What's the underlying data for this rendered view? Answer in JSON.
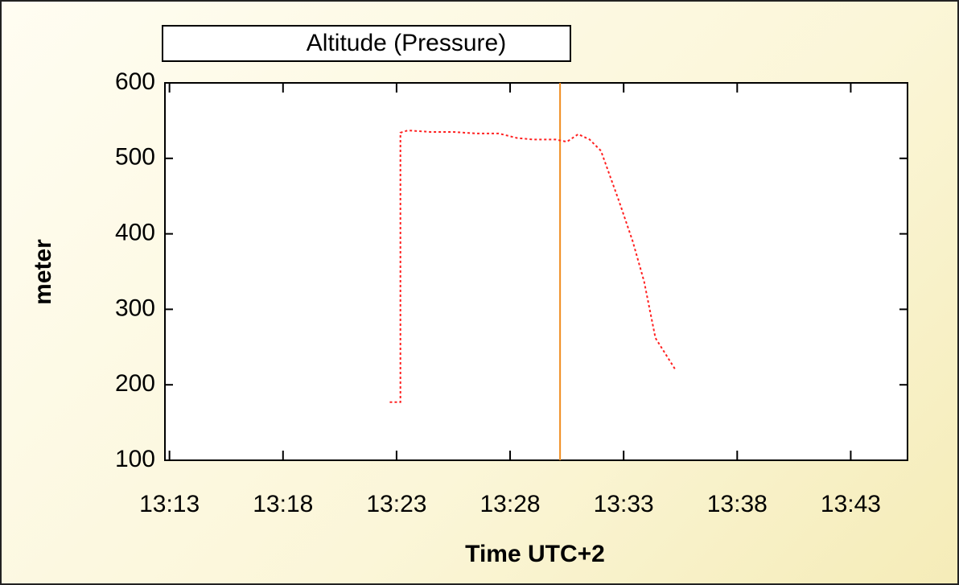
{
  "chart_data": {
    "type": "line",
    "xlabel": "Time UTC+2",
    "ylabel": "meter",
    "series": [
      {
        "name": "Altitude (Pressure)",
        "color": "#ff2020",
        "x": [
          802.7,
          803.17,
          803.17,
          803.5,
          804.5,
          805.5,
          806.5,
          807.5,
          808.3,
          809,
          810,
          810.5,
          811.0,
          811.5,
          812.0,
          812.8,
          813.4,
          813.9,
          814.4,
          815.3
        ],
        "values": [
          177,
          177,
          534,
          537,
          535,
          535,
          533,
          533,
          527,
          525,
          525,
          522,
          532,
          525,
          510,
          443,
          390,
          337,
          262,
          219
        ]
      }
    ],
    "cursor_x": 810.2,
    "cursor_color": "#f08c1e",
    "xlim": [
      792.8,
      825.5
    ],
    "xticks": [
      {
        "value": 793,
        "label": "13:13"
      },
      {
        "value": 798,
        "label": "13:18"
      },
      {
        "value": 803,
        "label": "13:23"
      },
      {
        "value": 808,
        "label": "13:28"
      },
      {
        "value": 813,
        "label": "13:33"
      },
      {
        "value": 818,
        "label": "13:38"
      },
      {
        "value": 823,
        "label": "13:43"
      }
    ],
    "ylim": [
      100,
      600
    ],
    "yticks": [
      100,
      200,
      300,
      400,
      500,
      600
    ]
  }
}
